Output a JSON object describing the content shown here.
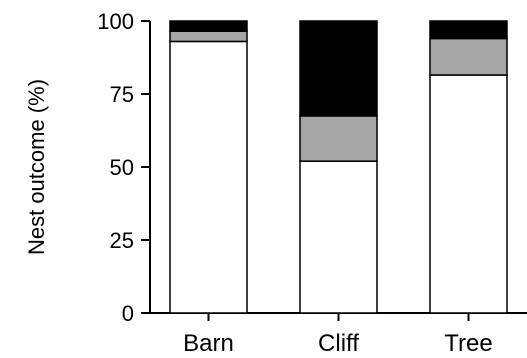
{
  "chart_data": {
    "type": "bar",
    "stacked": true,
    "title": "",
    "xlabel": "",
    "ylabel": "Nest outcome (%)",
    "ylim": [
      0,
      100
    ],
    "yticks": [
      "0",
      "25",
      "50",
      "75",
      "100"
    ],
    "categories": [
      "Barn",
      "Cliff",
      "Tree"
    ],
    "legend": "none",
    "grid": false,
    "series": [
      {
        "color": "#ffffff",
        "values": [
          93,
          52,
          81.5
        ]
      },
      {
        "color": "#a6a6a6",
        "values": [
          3.5,
          15.5,
          12.5
        ]
      },
      {
        "color": "#000000",
        "values": [
          3.5,
          32.5,
          6
        ]
      }
    ]
  }
}
